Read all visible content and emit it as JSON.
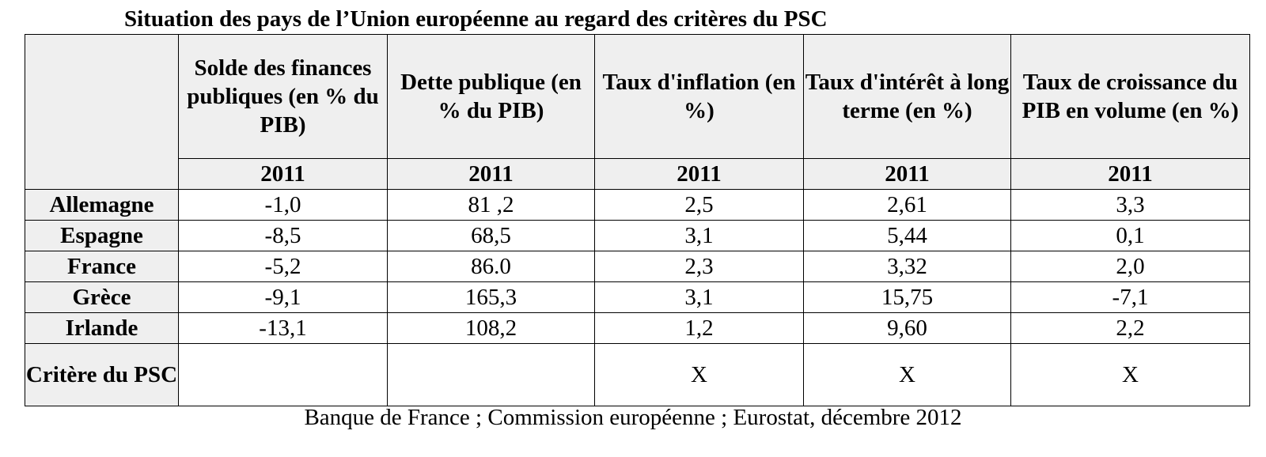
{
  "title": "Situation des pays de l’Union européenne au regard des critères du PSC",
  "headers": [
    "Solde des finances publiques (en % du PIB)",
    "Dette publique (en % du PIB)",
    "Taux d'inflation (en %)",
    "Taux d'intérêt à long terme (en %)",
    "Taux de croissance du PIB en volume (en %)"
  ],
  "year": "2011",
  "rows": [
    {
      "country": "Allemagne",
      "values": [
        "-1,0",
        "81 ,2",
        "2,5",
        "2,61",
        "3,3"
      ]
    },
    {
      "country": "Espagne",
      "values": [
        "-8,5",
        "68,5",
        "3,1",
        "5,44",
        "0,1"
      ]
    },
    {
      "country": "France",
      "values": [
        "-5,2",
        "86.0",
        "2,3",
        "3,32",
        "2,0"
      ]
    },
    {
      "country": "Grèce",
      "values": [
        "-9,1",
        "165,3",
        "3,1",
        "15,75",
        "-7,1"
      ]
    },
    {
      "country": "Irlande",
      "values": [
        "-13,1",
        "108,2",
        "1,2",
        "9,60",
        "2,2"
      ]
    }
  ],
  "criteria": {
    "label": "Critère du PSC",
    "values": [
      "",
      "",
      "X",
      "X",
      "X"
    ]
  },
  "source": "Banque de France ; Commission européenne ; Eurostat, décembre 2012"
}
